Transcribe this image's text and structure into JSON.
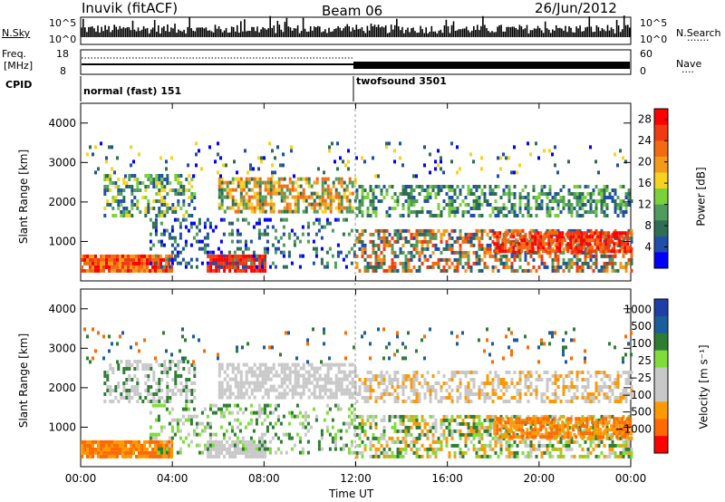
{
  "header": {
    "station": "Inuvik (fitACF)",
    "beam": "Beam 06",
    "date": "26/Jun/2012"
  },
  "summary_panels": {
    "nsky_label": "N.Sky",
    "nsky_ticks": [
      "10^5",
      "10^0"
    ],
    "nsearch_label": "N.Search",
    "nsearch_ticks": [
      "10^5",
      "10^0"
    ],
    "freq_label": "Freq.",
    "freq_unit": "[MHz]",
    "freq_ticks": [
      "18",
      "8"
    ],
    "nave_label": "Nave",
    "nave_ticks": [
      "60",
      "0"
    ],
    "cpid_label": "CPID",
    "cpid_modes": [
      {
        "name": "normal (fast) 151",
        "start_ut": "00:00"
      },
      {
        "name": "twofsound 3501",
        "start_ut": "12:00"
      }
    ]
  },
  "colors": {
    "power": [
      "#0000ff",
      "#1f4fa8",
      "#2f6e53",
      "#4f9c5c",
      "#7bd13a",
      "#f6d31f",
      "#f39a18",
      "#f26a12",
      "#f03a10",
      "#ff0000"
    ],
    "velocity": [
      "#ff0000",
      "#ff6a00",
      "#ff9900",
      "#c8c8c8",
      "#c8c8c8",
      "#7fdc3a",
      "#2e7d32",
      "#1b5e9b",
      "#1f3fa8"
    ]
  },
  "chart_data": [
    {
      "type": "heatmap",
      "xlabel": "Time UT",
      "ylabel": "Slant Range [km]",
      "x_ticks": [
        "00:00",
        "04:00",
        "08:00",
        "12:00",
        "16:00",
        "20:00",
        "00:00"
      ],
      "y_ticks": [
        "1000",
        "2000",
        "3000",
        "4000"
      ],
      "ylim": [
        0,
        4500
      ],
      "colorbar_label": "Power [dB]",
      "colorbar_ticks": [
        "4",
        "8",
        "12",
        "16",
        "20",
        "24",
        "28"
      ],
      "colorbar_range": [
        0,
        30
      ]
    },
    {
      "type": "heatmap",
      "xlabel": "Time UT",
      "ylabel": "Slant Range [km]",
      "x_ticks": [
        "00:00",
        "04:00",
        "08:00",
        "12:00",
        "16:00",
        "20:00",
        "00:00"
      ],
      "y_ticks": [
        "1000",
        "2000",
        "3000",
        "4000"
      ],
      "ylim": [
        0,
        4500
      ],
      "colorbar_label": "Velocity [m s⁻¹]",
      "colorbar_ticks": [
        "1000",
        "500",
        "100",
        "25",
        "−25",
        "−100",
        "−500",
        "−1000"
      ]
    }
  ]
}
